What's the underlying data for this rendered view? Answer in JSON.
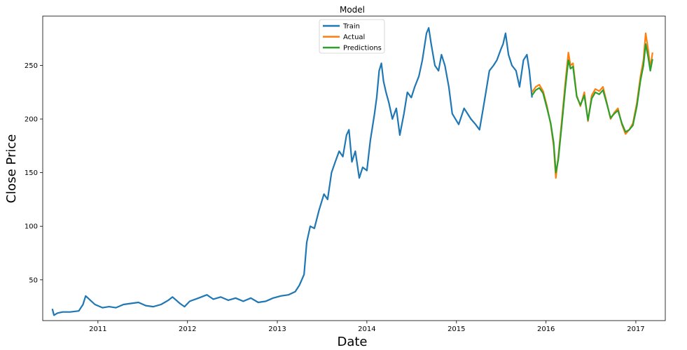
{
  "chart_data": {
    "type": "line",
    "title": "Model",
    "xlabel": "Date",
    "ylabel": "Close Price",
    "x_ticks": [
      "2011",
      "2012",
      "2013",
      "2014",
      "2015",
      "2016",
      "2017"
    ],
    "y_ticks": [
      50,
      100,
      150,
      200,
      250
    ],
    "xlim": [
      "2010-05-21",
      "2017-05-01"
    ],
    "ylim": [
      12,
      296
    ],
    "grid": false,
    "legend_position": "top-center",
    "series": [
      {
        "name": "Train",
        "color": "#1f77b4",
        "points": [
          [
            "2010-06-29",
            23
          ],
          [
            "2010-07-06",
            17
          ],
          [
            "2010-07-20",
            19
          ],
          [
            "2010-08-10",
            20
          ],
          [
            "2010-09-10",
            20
          ],
          [
            "2010-10-15",
            21
          ],
          [
            "2010-11-01",
            27
          ],
          [
            "2010-11-12",
            35
          ],
          [
            "2010-12-01",
            31
          ],
          [
            "2010-12-20",
            27
          ],
          [
            "2011-01-20",
            24
          ],
          [
            "2011-02-15",
            25
          ],
          [
            "2011-03-15",
            24
          ],
          [
            "2011-04-15",
            27
          ],
          [
            "2011-05-15",
            28
          ],
          [
            "2011-06-15",
            29
          ],
          [
            "2011-07-15",
            26
          ],
          [
            "2011-08-15",
            25
          ],
          [
            "2011-09-15",
            27
          ],
          [
            "2011-10-15",
            31
          ],
          [
            "2011-11-01",
            34
          ],
          [
            "2011-12-01",
            28
          ],
          [
            "2011-12-20",
            25
          ],
          [
            "2012-01-10",
            30
          ],
          [
            "2012-02-15",
            33
          ],
          [
            "2012-03-20",
            36
          ],
          [
            "2012-04-15",
            32
          ],
          [
            "2012-05-15",
            34
          ],
          [
            "2012-06-15",
            31
          ],
          [
            "2012-07-15",
            33
          ],
          [
            "2012-08-15",
            30
          ],
          [
            "2012-09-15",
            33
          ],
          [
            "2012-10-15",
            29
          ],
          [
            "2012-11-15",
            30
          ],
          [
            "2012-12-15",
            33
          ],
          [
            "2013-01-15",
            35
          ],
          [
            "2013-02-15",
            36
          ],
          [
            "2013-03-15",
            39
          ],
          [
            "2013-04-01",
            45
          ],
          [
            "2013-04-20",
            55
          ],
          [
            "2013-05-01",
            85
          ],
          [
            "2013-05-15",
            100
          ],
          [
            "2013-06-01",
            98
          ],
          [
            "2013-06-20",
            115
          ],
          [
            "2013-07-10",
            130
          ],
          [
            "2013-07-25",
            125
          ],
          [
            "2013-08-10",
            150
          ],
          [
            "2013-08-25",
            160
          ],
          [
            "2013-09-10",
            170
          ],
          [
            "2013-09-25",
            165
          ],
          [
            "2013-10-10",
            185
          ],
          [
            "2013-10-20",
            190
          ],
          [
            "2013-11-01",
            160
          ],
          [
            "2013-11-15",
            170
          ],
          [
            "2013-12-01",
            145
          ],
          [
            "2013-12-15",
            155
          ],
          [
            "2014-01-01",
            152
          ],
          [
            "2014-01-15",
            180
          ],
          [
            "2014-02-01",
            205
          ],
          [
            "2014-02-10",
            220
          ],
          [
            "2014-02-20",
            245
          ],
          [
            "2014-03-01",
            252
          ],
          [
            "2014-03-10",
            235
          ],
          [
            "2014-03-20",
            225
          ],
          [
            "2014-04-01",
            215
          ],
          [
            "2014-04-15",
            200
          ],
          [
            "2014-05-01",
            210
          ],
          [
            "2014-05-15",
            185
          ],
          [
            "2014-06-01",
            205
          ],
          [
            "2014-06-15",
            225
          ],
          [
            "2014-07-01",
            220
          ],
          [
            "2014-07-15",
            230
          ],
          [
            "2014-08-01",
            240
          ],
          [
            "2014-08-15",
            255
          ],
          [
            "2014-09-01",
            280
          ],
          [
            "2014-09-10",
            285
          ],
          [
            "2014-09-20",
            270
          ],
          [
            "2014-10-05",
            250
          ],
          [
            "2014-10-20",
            245
          ],
          [
            "2014-11-01",
            260
          ],
          [
            "2014-11-15",
            250
          ],
          [
            "2014-12-01",
            230
          ],
          [
            "2014-12-15",
            205
          ],
          [
            "2015-01-10",
            195
          ],
          [
            "2015-02-01",
            210
          ],
          [
            "2015-02-15",
            205
          ],
          [
            "2015-03-01",
            200
          ],
          [
            "2015-03-20",
            195
          ],
          [
            "2015-04-05",
            190
          ],
          [
            "2015-04-20",
            210
          ],
          [
            "2015-05-01",
            225
          ],
          [
            "2015-05-15",
            245
          ],
          [
            "2015-06-01",
            250
          ],
          [
            "2015-06-15",
            255
          ],
          [
            "2015-07-01",
            265
          ],
          [
            "2015-07-10",
            270
          ],
          [
            "2015-07-20",
            280
          ],
          [
            "2015-08-01",
            260
          ],
          [
            "2015-08-15",
            250
          ],
          [
            "2015-09-01",
            245
          ],
          [
            "2015-09-15",
            230
          ],
          [
            "2015-10-01",
            255
          ],
          [
            "2015-10-15",
            260
          ],
          [
            "2015-10-25",
            245
          ],
          [
            "2015-11-05",
            220
          ]
        ]
      },
      {
        "name": "Actual",
        "color": "#ff7f0e",
        "points": [
          [
            "2015-11-05",
            225
          ],
          [
            "2015-11-20",
            230
          ],
          [
            "2015-12-05",
            232
          ],
          [
            "2015-12-20",
            226
          ],
          [
            "2016-01-05",
            212
          ],
          [
            "2016-01-20",
            195
          ],
          [
            "2016-02-01",
            175
          ],
          [
            "2016-02-10",
            145
          ],
          [
            "2016-02-20",
            165
          ],
          [
            "2016-03-05",
            198
          ],
          [
            "2016-03-20",
            235
          ],
          [
            "2016-04-01",
            262
          ],
          [
            "2016-04-10",
            250
          ],
          [
            "2016-04-20",
            252
          ],
          [
            "2016-05-05",
            222
          ],
          [
            "2016-05-20",
            212
          ],
          [
            "2016-06-05",
            225
          ],
          [
            "2016-06-20",
            198
          ],
          [
            "2016-07-05",
            222
          ],
          [
            "2016-07-20",
            228
          ],
          [
            "2016-08-05",
            226
          ],
          [
            "2016-08-20",
            230
          ],
          [
            "2016-09-05",
            215
          ],
          [
            "2016-09-20",
            200
          ],
          [
            "2016-10-05",
            206
          ],
          [
            "2016-10-20",
            210
          ],
          [
            "2016-11-05",
            195
          ],
          [
            "2016-11-20",
            186
          ],
          [
            "2016-12-05",
            190
          ],
          [
            "2016-12-20",
            196
          ],
          [
            "2017-01-05",
            215
          ],
          [
            "2017-01-20",
            240
          ],
          [
            "2017-02-01",
            255
          ],
          [
            "2017-02-10",
            280
          ],
          [
            "2017-02-20",
            265
          ],
          [
            "2017-03-01",
            248
          ],
          [
            "2017-03-10",
            262
          ]
        ]
      },
      {
        "name": "Predictions",
        "color": "#2ca02c",
        "points": [
          [
            "2015-11-05",
            222
          ],
          [
            "2015-11-20",
            227
          ],
          [
            "2015-12-05",
            229
          ],
          [
            "2015-12-20",
            224
          ],
          [
            "2016-01-05",
            210
          ],
          [
            "2016-01-20",
            196
          ],
          [
            "2016-02-01",
            178
          ],
          [
            "2016-02-10",
            150
          ],
          [
            "2016-02-20",
            162
          ],
          [
            "2016-03-05",
            194
          ],
          [
            "2016-03-20",
            230
          ],
          [
            "2016-04-01",
            255
          ],
          [
            "2016-04-10",
            247
          ],
          [
            "2016-04-20",
            249
          ],
          [
            "2016-05-05",
            221
          ],
          [
            "2016-05-20",
            213
          ],
          [
            "2016-06-05",
            222
          ],
          [
            "2016-06-20",
            199
          ],
          [
            "2016-07-05",
            219
          ],
          [
            "2016-07-20",
            225
          ],
          [
            "2016-08-05",
            223
          ],
          [
            "2016-08-20",
            227
          ],
          [
            "2016-09-05",
            214
          ],
          [
            "2016-09-20",
            201
          ],
          [
            "2016-10-05",
            205
          ],
          [
            "2016-10-20",
            208
          ],
          [
            "2016-11-05",
            196
          ],
          [
            "2016-11-20",
            188
          ],
          [
            "2016-12-05",
            190
          ],
          [
            "2016-12-20",
            194
          ],
          [
            "2017-01-05",
            212
          ],
          [
            "2017-01-20",
            236
          ],
          [
            "2017-02-01",
            250
          ],
          [
            "2017-02-10",
            270
          ],
          [
            "2017-02-20",
            258
          ],
          [
            "2017-03-01",
            245
          ],
          [
            "2017-03-10",
            256
          ]
        ]
      }
    ]
  }
}
